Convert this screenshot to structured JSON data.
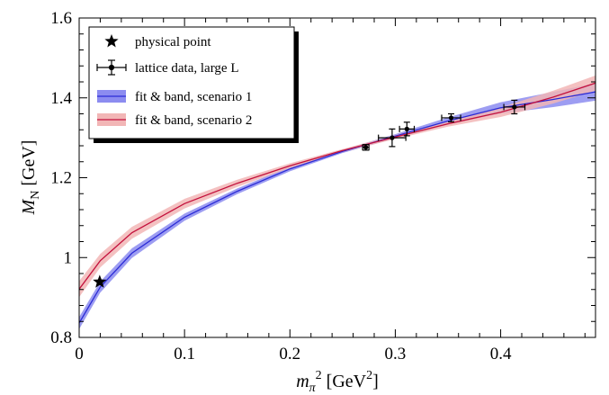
{
  "chart_data": {
    "type": "line",
    "title": "",
    "xlabel": {
      "base": "m",
      "sub": "π",
      "sup": "2",
      "unit_prefix": " [GeV",
      "unit_sup": "2",
      "unit_suffix": "]"
    },
    "ylabel": {
      "base": "M",
      "sub": "N",
      "unit": " [GeV]"
    },
    "xlim": [
      0,
      0.49
    ],
    "ylim": [
      0.8,
      1.6
    ],
    "x_ticks": [
      0,
      0.1,
      0.2,
      0.3,
      0.4
    ],
    "x_tick_labels": [
      "0",
      "0.1",
      "0.2",
      "0.3",
      "0.4"
    ],
    "y_ticks": [
      0.8,
      1.0,
      1.2,
      1.4,
      1.6
    ],
    "y_tick_labels": [
      "0.8",
      "1",
      "1.2",
      "1.4",
      "1.6"
    ],
    "grid": false,
    "legend_position": "top-left",
    "legend": [
      {
        "label": "physical point"
      },
      {
        "label": "lattice data, large L"
      },
      {
        "label": "fit & band, scenario 1"
      },
      {
        "label": "fit & band, scenario 2"
      }
    ],
    "physical_point": {
      "x": 0.0195,
      "y": 0.939
    },
    "lattice_data": [
      {
        "x": 0.272,
        "y": 1.276,
        "xerr": 0.003,
        "yerr": 0.007
      },
      {
        "x": 0.297,
        "y": 1.3,
        "xerr": 0.013,
        "yerr": 0.022
      },
      {
        "x": 0.311,
        "y": 1.322,
        "xerr": 0.007,
        "yerr": 0.017
      },
      {
        "x": 0.353,
        "y": 1.35,
        "xerr": 0.009,
        "yerr": 0.01
      },
      {
        "x": 0.413,
        "y": 1.377,
        "xerr": 0.01,
        "yerr": 0.017
      }
    ],
    "series": [
      {
        "name": "fit & band, scenario 1",
        "line_color": "#2b2bd6",
        "band_color": "#8c8cf0",
        "x": [
          0.0,
          0.02,
          0.05,
          0.1,
          0.15,
          0.2,
          0.25,
          0.3,
          0.35,
          0.4,
          0.45,
          0.49
        ],
        "y": [
          0.836,
          0.926,
          1.011,
          1.101,
          1.166,
          1.222,
          1.266,
          1.304,
          1.342,
          1.375,
          1.396,
          1.415
        ],
        "lower": [
          0.821,
          0.912,
          0.999,
          1.092,
          1.159,
          1.216,
          1.262,
          1.299,
          1.333,
          1.361,
          1.377,
          1.393
        ],
        "upper": [
          0.851,
          0.94,
          1.023,
          1.11,
          1.173,
          1.228,
          1.27,
          1.309,
          1.351,
          1.389,
          1.415,
          1.437
        ]
      },
      {
        "name": "fit & band, scenario 2",
        "line_color": "#c3103c",
        "band_color": "#f2b6b6",
        "x": [
          0.0,
          0.02,
          0.05,
          0.1,
          0.15,
          0.2,
          0.25,
          0.3,
          0.35,
          0.4,
          0.45,
          0.49
        ],
        "y": [
          0.921,
          0.992,
          1.062,
          1.135,
          1.186,
          1.23,
          1.268,
          1.302,
          1.335,
          1.364,
          1.402,
          1.437
        ],
        "lower": [
          0.901,
          0.975,
          1.047,
          1.123,
          1.177,
          1.224,
          1.264,
          1.297,
          1.328,
          1.352,
          1.386,
          1.418
        ],
        "upper": [
          0.941,
          1.009,
          1.077,
          1.147,
          1.195,
          1.236,
          1.272,
          1.307,
          1.342,
          1.376,
          1.418,
          1.456
        ]
      }
    ]
  }
}
